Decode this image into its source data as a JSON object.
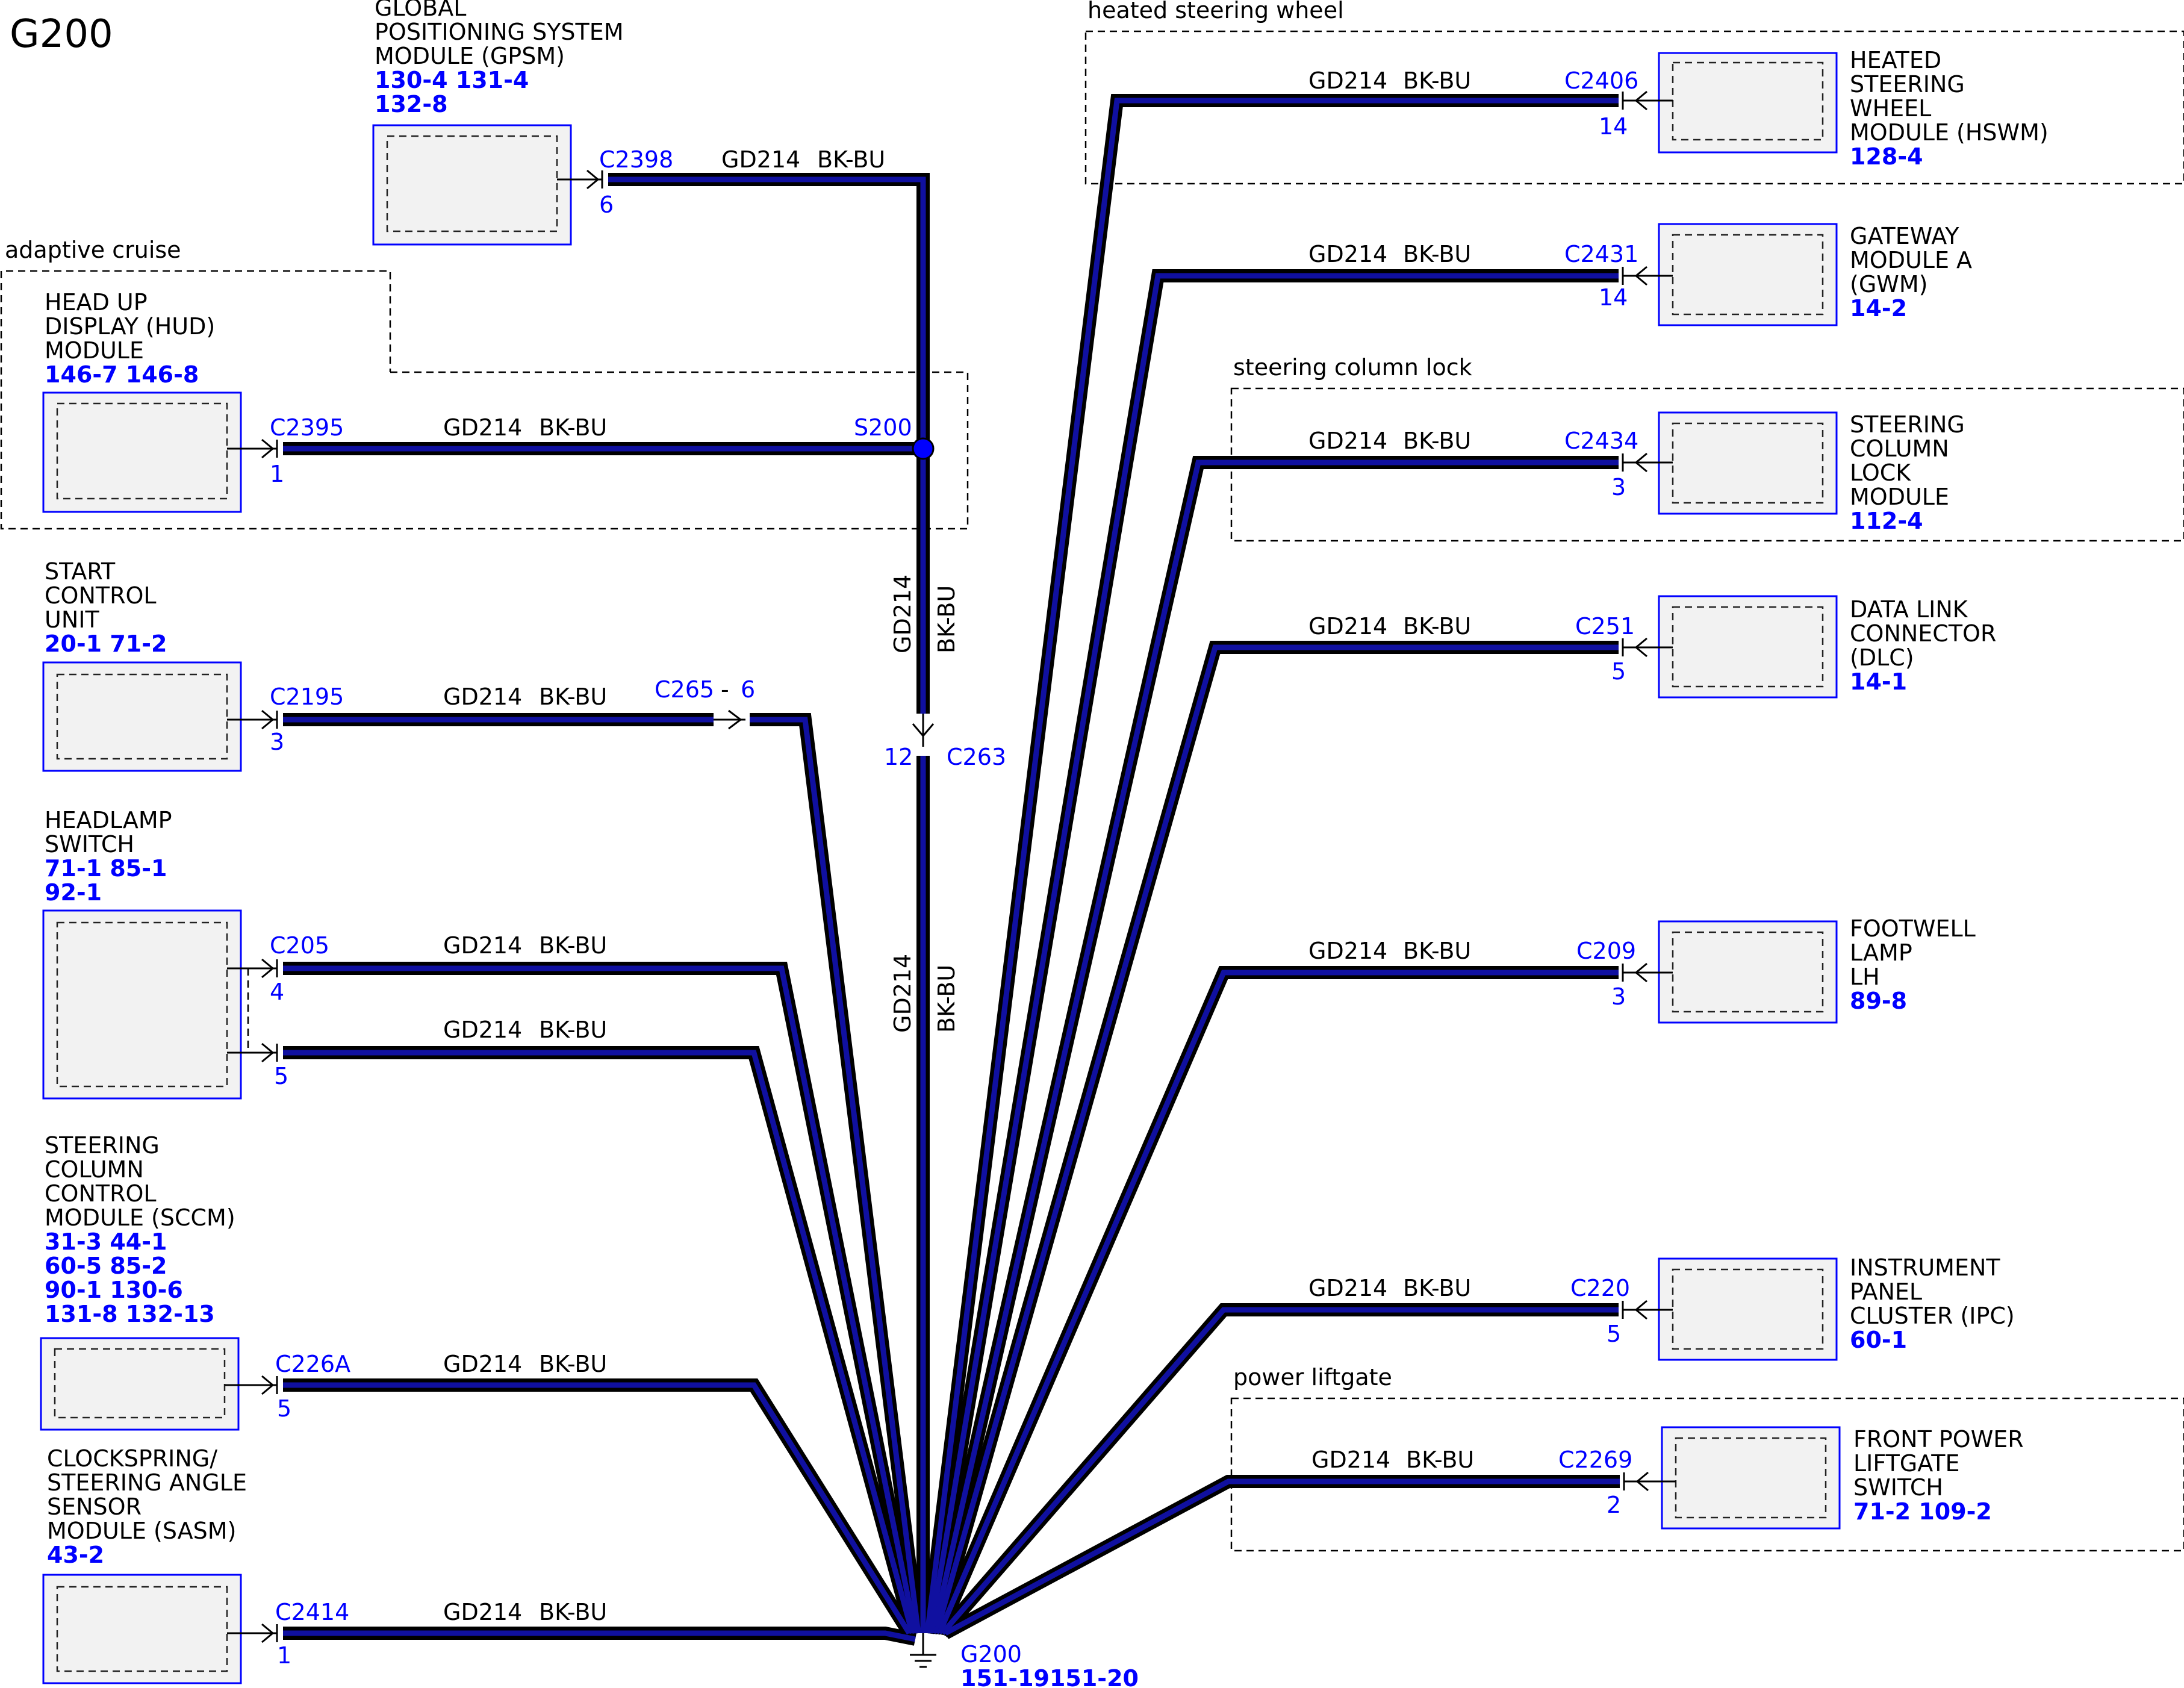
{
  "diagram": {
    "title": "G200",
    "wire": {
      "code": "GD214",
      "color": "BK-BU"
    },
    "groups": {
      "adaptive_cruise": "adaptive cruise",
      "heated_steering_wheel": "heated steering wheel",
      "steering_column_lock": "steering column lock",
      "power_liftgate": "power liftgate"
    },
    "splice": {
      "name": "S200"
    },
    "inline_c263": {
      "connector": "C263",
      "pin": "12"
    },
    "inline_c265": {
      "connector": "C265",
      "sep": "-",
      "pin": "6"
    },
    "ground": {
      "name": "G200",
      "refs": "151-19151-20"
    },
    "left_modules": [
      {
        "lines": [
          "GLOBAL",
          "POSITIONING SYSTEM",
          "MODULE (GPSM)"
        ],
        "refs": [
          "130-4 131-4",
          "132-8"
        ],
        "connector": "C2398",
        "pin": "6"
      },
      {
        "lines": [
          "HEAD UP",
          "DISPLAY (HUD)",
          "MODULE"
        ],
        "refs": [
          "146-7 146-8"
        ],
        "connector": "C2395",
        "pin": "1"
      },
      {
        "lines": [
          "START",
          "CONTROL",
          "UNIT"
        ],
        "refs": [
          "20-1   71-2"
        ],
        "connector": "C2195",
        "pin": "3"
      },
      {
        "lines": [
          "HEADLAMP",
          "SWITCH"
        ],
        "refs": [
          "71-1   85-1",
          "92-1"
        ],
        "connector": "C205",
        "pin": "4",
        "pin2": "5"
      },
      {
        "lines": [
          "STEERING",
          "COLUMN",
          "CONTROL",
          "MODULE (SCCM)"
        ],
        "refs": [
          "31-3   44-1",
          "60-5   85-2",
          "90-1   130-6",
          "131-8   132-13"
        ],
        "connector": "C226A",
        "pin": "5"
      },
      {
        "lines": [
          "CLOCKSPRING/",
          "STEERING ANGLE",
          "SENSOR",
          "MODULE (SASM)"
        ],
        "refs": [
          "43-2"
        ],
        "connector": "C2414",
        "pin": "1"
      }
    ],
    "right_modules": [
      {
        "lines": [
          "HEATED",
          "STEERING",
          "WHEEL",
          "MODULE (HSWM)"
        ],
        "refs": [
          "128-4"
        ],
        "connector": "C2406",
        "pin": "14"
      },
      {
        "lines": [
          "GATEWAY",
          "MODULE A",
          "(GWM)"
        ],
        "refs": [
          "14-2"
        ],
        "connector": "C2431",
        "pin": "14"
      },
      {
        "lines": [
          "STEERING",
          "COLUMN",
          "LOCK",
          "MODULE"
        ],
        "refs": [
          "112-4"
        ],
        "connector": "C2434",
        "pin": "3"
      },
      {
        "lines": [
          "DATA LINK",
          "CONNECTOR",
          "(DLC)"
        ],
        "refs": [
          "14-1"
        ],
        "connector": "C251",
        "pin": "5"
      },
      {
        "lines": [
          "FOOTWELL",
          "LAMP",
          "LH"
        ],
        "refs": [
          "89-8"
        ],
        "connector": "C209",
        "pin": "3"
      },
      {
        "lines": [
          "INSTRUMENT",
          "PANEL",
          "CLUSTER (IPC)"
        ],
        "refs": [
          "60-1"
        ],
        "connector": "C220",
        "pin": "5"
      },
      {
        "lines": [
          "FRONT POWER",
          "LIFTGATE",
          "SWITCH"
        ],
        "refs": [
          "71-2   109-2"
        ],
        "connector": "C2269",
        "pin": "2"
      }
    ],
    "colors": {
      "wire_outer": "#000000",
      "wire_inner": "#1010a0",
      "connector_text": "#0000ff",
      "module_fill": "#f2f2f2"
    }
  }
}
